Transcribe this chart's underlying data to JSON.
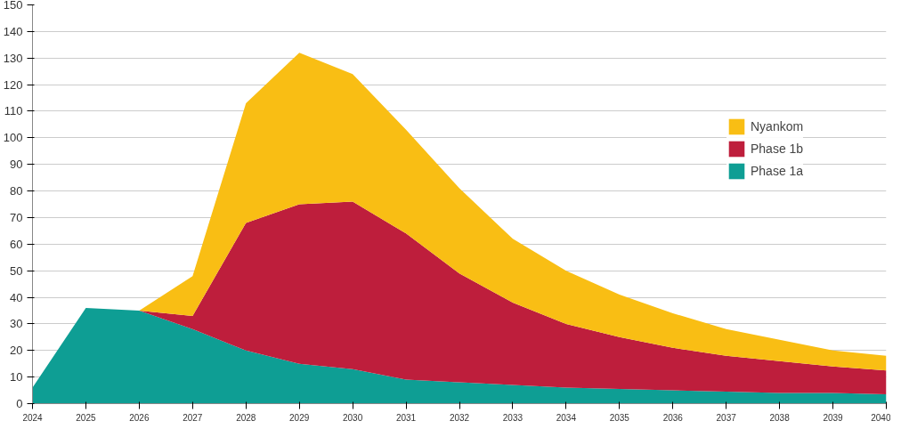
{
  "chart_data": {
    "type": "area",
    "stacked": true,
    "x": [
      2024,
      2025,
      2026,
      2027,
      2028,
      2029,
      2030,
      2031,
      2032,
      2033,
      2034,
      2035,
      2036,
      2037,
      2038,
      2039,
      2040
    ],
    "series": [
      {
        "name": "Phase 1a",
        "color": "#0e9e94",
        "values": [
          6,
          36,
          35,
          28,
          20,
          15,
          13,
          9,
          8,
          7,
          6,
          5.5,
          5,
          4.5,
          4,
          4,
          3.5
        ]
      },
      {
        "name": "Phase 1b",
        "color": "#be1e3c",
        "values": [
          0,
          0,
          0,
          5,
          48,
          60,
          63,
          55,
          41,
          31,
          24,
          19.5,
          16,
          13.5,
          12,
          10,
          9
        ]
      },
      {
        "name": "Nyankom",
        "color": "#f9be14",
        "values": [
          0,
          0,
          0,
          15,
          45,
          57,
          48,
          39,
          32,
          24,
          20,
          16,
          13,
          10,
          8,
          6,
          5.5
        ]
      }
    ],
    "xlim": [
      2024,
      2040
    ],
    "xticks": [
      2024,
      2025,
      2026,
      2027,
      2028,
      2029,
      2030,
      2031,
      2032,
      2033,
      2034,
      2035,
      2036,
      2037,
      2038,
      2039,
      2040
    ],
    "ylim": [
      0,
      150
    ],
    "yticks": [
      0,
      10,
      20,
      30,
      40,
      50,
      60,
      70,
      80,
      90,
      100,
      110,
      120,
      130,
      140,
      150
    ],
    "grid": "y",
    "legend": "right"
  }
}
